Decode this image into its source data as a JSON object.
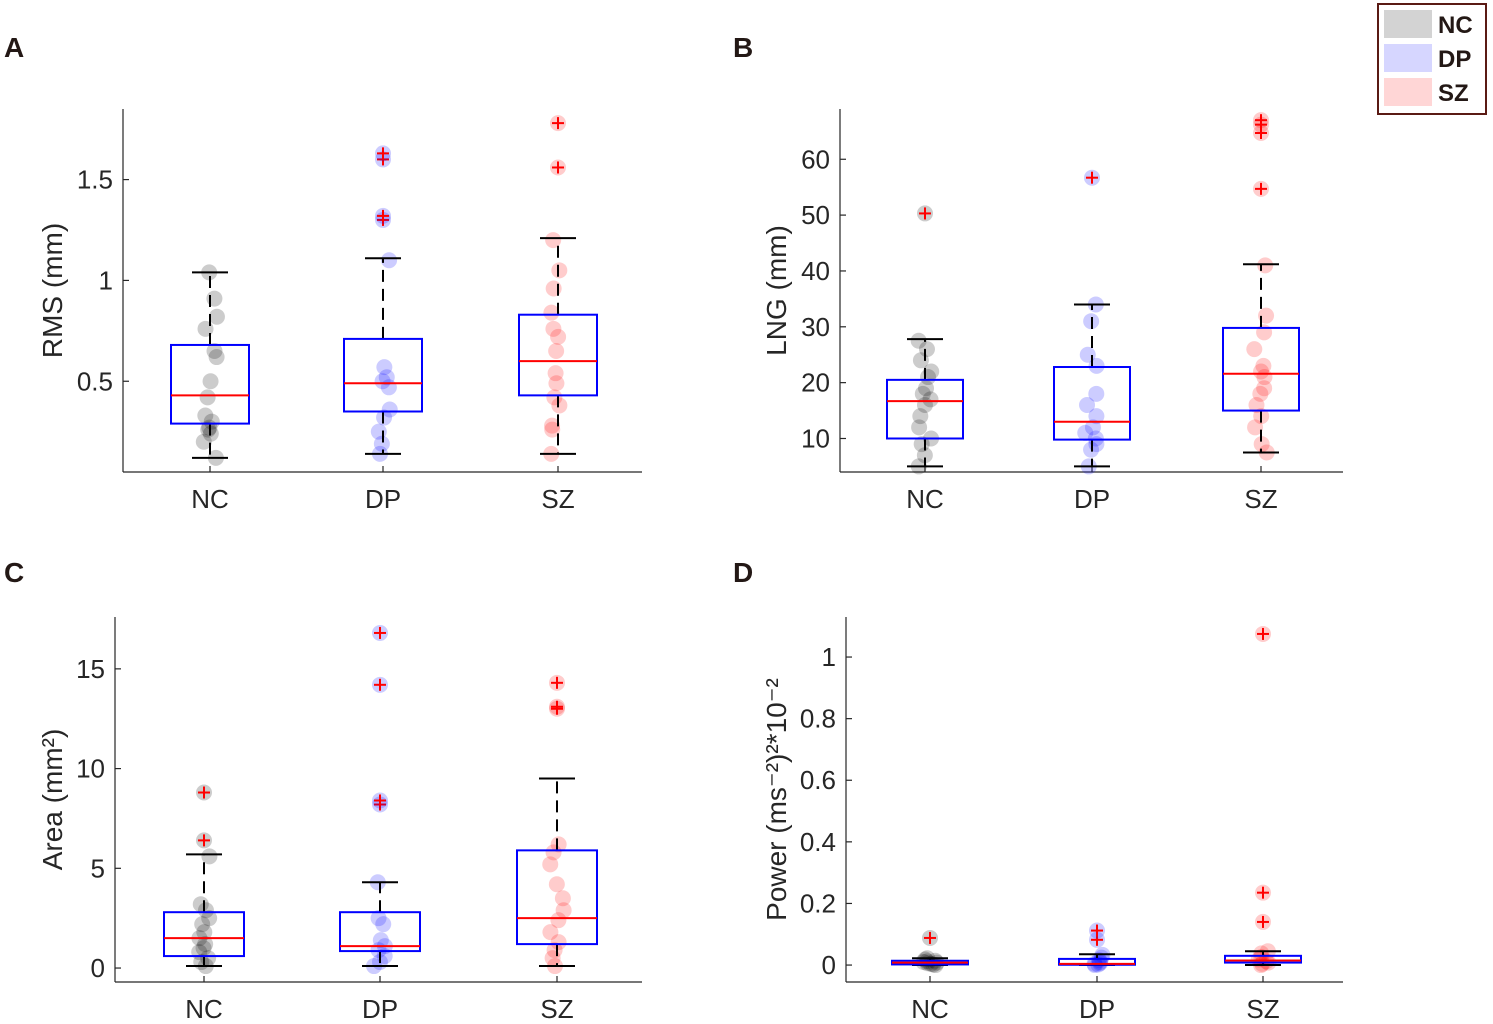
{
  "legend": {
    "border_color": "#5a1a14",
    "entries": [
      {
        "label": "NC",
        "color": "#d3d3d3"
      },
      {
        "label": "DP",
        "color": "#d6d6ff"
      },
      {
        "label": "SZ",
        "color": "#ffd6d6"
      }
    ]
  },
  "colors": {
    "NC": "#000000",
    "DP": "#0000ff",
    "SZ": "#ff0000",
    "box": "#0000ff",
    "median": "#ff0000",
    "outlier": "#ff0000",
    "axis": "#262626"
  },
  "chart_data": [
    {
      "panel": "A",
      "type": "box",
      "ylabel": "RMS (mm)",
      "categories": [
        "NC",
        "DP",
        "SZ"
      ],
      "ylim": [
        0.05,
        1.85
      ],
      "yticks": [
        0.5,
        1,
        1.5
      ],
      "ytick_labels": [
        "0.5",
        "1",
        "1.5"
      ],
      "boxes": [
        {
          "q1": 0.29,
          "median": 0.43,
          "q3": 0.68,
          "whisker_low": 0.12,
          "whisker_high": 1.04,
          "points": [
            0.12,
            0.2,
            0.24,
            0.26,
            0.27,
            0.3,
            0.33,
            0.42,
            0.5,
            0.62,
            0.65,
            0.76,
            0.82,
            0.91,
            1.04
          ],
          "outliers": []
        },
        {
          "q1": 0.35,
          "median": 0.49,
          "q3": 0.71,
          "whisker_low": 0.14,
          "whisker_high": 1.11,
          "points": [
            0.14,
            0.19,
            0.25,
            0.32,
            0.36,
            0.47,
            0.5,
            0.52,
            0.57,
            1.1
          ],
          "outliers": [
            1.3,
            1.32,
            1.6,
            1.63
          ]
        },
        {
          "q1": 0.43,
          "median": 0.6,
          "q3": 0.83,
          "whisker_low": 0.14,
          "whisker_high": 1.21,
          "points": [
            0.14,
            0.26,
            0.28,
            0.38,
            0.42,
            0.49,
            0.54,
            0.65,
            0.72,
            0.76,
            0.84,
            0.96,
            1.05,
            1.2
          ],
          "outliers": [
            1.56,
            1.78
          ]
        }
      ]
    },
    {
      "panel": "B",
      "type": "box",
      "ylabel": "LNG (mm)",
      "categories": [
        "NC",
        "DP",
        "SZ"
      ],
      "ylim": [
        4,
        69
      ],
      "yticks": [
        10,
        20,
        30,
        40,
        50,
        60
      ],
      "ytick_labels": [
        "10",
        "20",
        "30",
        "40",
        "50",
        "60"
      ],
      "boxes": [
        {
          "q1": 10,
          "median": 16.7,
          "q3": 20.5,
          "whisker_low": 5,
          "whisker_high": 27.8,
          "points": [
            5,
            7,
            9,
            10,
            12,
            14,
            16,
            17,
            18,
            19,
            21,
            22,
            24,
            26,
            27.5
          ],
          "outliers": [
            50.3
          ]
        },
        {
          "q1": 9.8,
          "median": 13,
          "q3": 22.8,
          "whisker_low": 5,
          "whisker_high": 34,
          "points": [
            5,
            8,
            9,
            10,
            11,
            12,
            14,
            16,
            18,
            23,
            25,
            31,
            34
          ],
          "outliers": [
            56.7
          ]
        },
        {
          "q1": 15,
          "median": 21.6,
          "q3": 29.8,
          "whisker_low": 7.5,
          "whisker_high": 41.2,
          "points": [
            7.5,
            9,
            12,
            14,
            16,
            18,
            19,
            21,
            22,
            23,
            26,
            29,
            32,
            41
          ],
          "outliers": [
            54.7,
            64.7,
            66.2,
            67
          ]
        }
      ]
    },
    {
      "panel": "C",
      "type": "box",
      "ylabel": "Area (mm²)",
      "categories": [
        "NC",
        "DP",
        "SZ"
      ],
      "ylim": [
        -0.7,
        17.6
      ],
      "yticks": [
        0,
        5,
        10,
        15
      ],
      "ytick_labels": [
        "0",
        "5",
        "10",
        "15"
      ],
      "boxes": [
        {
          "q1": 0.6,
          "median": 1.5,
          "q3": 2.8,
          "whisker_low": 0.1,
          "whisker_high": 5.7,
          "points": [
            0.1,
            0.3,
            0.5,
            0.8,
            1,
            1.2,
            1.5,
            1.8,
            2.2,
            2.5,
            2.9,
            3.2,
            5.6
          ],
          "outliers": [
            6.4,
            8.8
          ]
        },
        {
          "q1": 0.85,
          "median": 1.1,
          "q3": 2.8,
          "whisker_low": 0.1,
          "whisker_high": 4.3,
          "points": [
            0.1,
            0.3,
            0.6,
            0.9,
            1.1,
            1.4,
            2.2,
            2.5,
            4.3
          ],
          "outliers": [
            8.2,
            8.4,
            14.2,
            16.8
          ]
        },
        {
          "q1": 1.2,
          "median": 2.5,
          "q3": 5.9,
          "whisker_low": 0.1,
          "whisker_high": 9.5,
          "points": [
            0.1,
            0.5,
            0.9,
            1.3,
            1.8,
            2.4,
            2.9,
            3.5,
            4.2,
            5.2,
            5.8,
            6.2
          ],
          "outliers": [
            13,
            13.1,
            14.3
          ]
        }
      ]
    },
    {
      "panel": "D",
      "type": "box",
      "ylabel": "Power (ms⁻²)²*10⁻²",
      "categories": [
        "NC",
        "DP",
        "SZ"
      ],
      "ylim": [
        -0.055,
        1.13
      ],
      "yticks": [
        0,
        0.2,
        0.4,
        0.6,
        0.8,
        1
      ],
      "ytick_labels": [
        "0",
        "0.2",
        "0.4",
        "0.6",
        "0.8",
        "1"
      ],
      "boxes": [
        {
          "q1": 0.002,
          "median": 0.008,
          "q3": 0.014,
          "whisker_low": 0,
          "whisker_high": 0.022,
          "points": [
            0,
            0.002,
            0.004,
            0.006,
            0.008,
            0.01,
            0.012,
            0.014,
            0.018,
            0.022
          ],
          "outliers": [
            0.088
          ]
        },
        {
          "q1": 0.001,
          "median": 0.004,
          "q3": 0.02,
          "whisker_low": 0,
          "whisker_high": 0.035,
          "points": [
            0,
            0.002,
            0.004,
            0.006,
            0.01,
            0.016,
            0.024,
            0.033
          ],
          "outliers": [
            0.082,
            0.112
          ]
        },
        {
          "q1": 0.008,
          "median": 0.015,
          "q3": 0.03,
          "whisker_low": 0,
          "whisker_high": 0.045,
          "points": [
            0,
            0.004,
            0.008,
            0.012,
            0.018,
            0.026,
            0.038,
            0.045
          ],
          "outliers": [
            0.14,
            0.235,
            1.075
          ]
        }
      ]
    }
  ]
}
